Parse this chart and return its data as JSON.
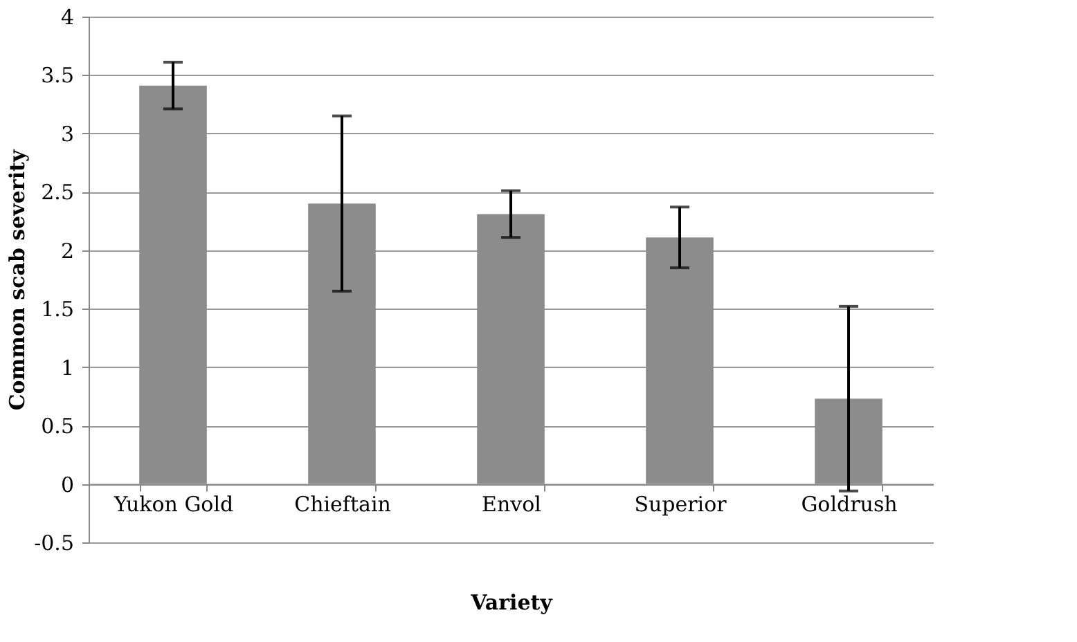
{
  "chart_data": {
    "type": "bar",
    "xlabel": "Variety",
    "ylabel": "Common scab severity",
    "categories": [
      "Yukon Gold",
      "Chieftain",
      "Envol",
      "Superior",
      "Goldrush"
    ],
    "values": [
      3.41,
      2.4,
      2.31,
      2.11,
      0.73
    ],
    "errors": [
      0.2,
      0.75,
      0.2,
      0.26,
      0.79
    ],
    "color": "#8c8c8c",
    "ylim": [
      -0.5,
      4
    ],
    "yticks": [
      -0.5,
      0,
      0.5,
      1,
      1.5,
      2,
      2.5,
      3,
      3.5,
      4
    ],
    "grid": "y"
  }
}
